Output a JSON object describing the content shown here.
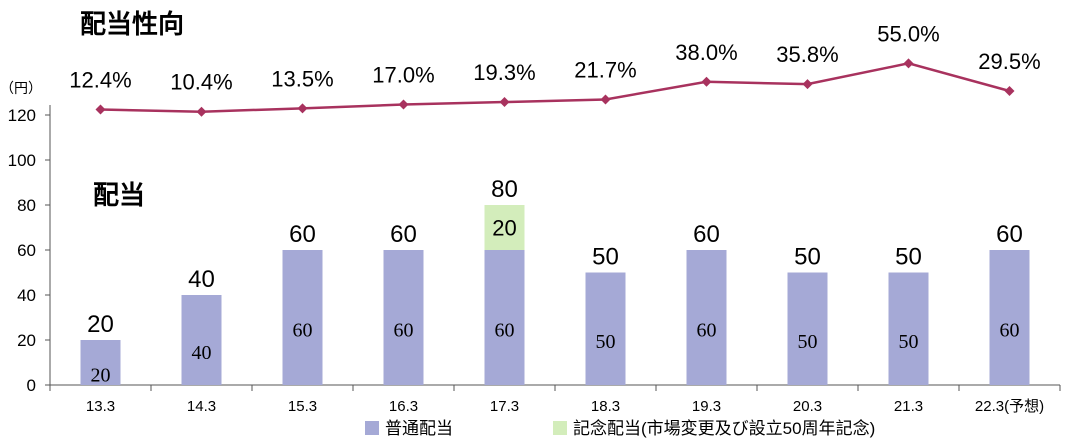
{
  "chart_data": {
    "type": "bar",
    "title_payout": "配当性向",
    "title_dividend": "配当",
    "ylabel": "（円）",
    "ylim": [
      0,
      120
    ],
    "yticks": [
      0,
      20,
      40,
      60,
      80,
      100,
      120
    ],
    "categories": [
      "13.3",
      "14.3",
      "15.3",
      "16.3",
      "17.3",
      "18.3",
      "19.3",
      "20.3",
      "21.3",
      "22.3(予想)"
    ],
    "series": [
      {
        "name": "普通配当",
        "type": "bar",
        "color": "#a5a9d6",
        "values": [
          20,
          40,
          60,
          60,
          60,
          50,
          60,
          50,
          50,
          60
        ]
      },
      {
        "name": "記念配当(市場変更及び設立50周年記念)",
        "type": "bar",
        "color": "#d3edbb",
        "values": [
          0,
          0,
          0,
          0,
          20,
          0,
          0,
          0,
          0,
          0
        ]
      }
    ],
    "totals": [
      20,
      40,
      60,
      60,
      80,
      50,
      60,
      50,
      50,
      60
    ],
    "payout_ratio": {
      "type": "line",
      "color": "#a8325e",
      "values": [
        12.4,
        10.4,
        13.5,
        17.0,
        19.3,
        21.7,
        38.0,
        35.8,
        55.0,
        29.5
      ],
      "labels": [
        "12.4%",
        "10.4%",
        "13.5%",
        "17.0%",
        "19.3%",
        "21.7%",
        "38.0%",
        "35.8%",
        "55.0%",
        "29.5%"
      ]
    },
    "legend_position": "bottom",
    "grid": false
  }
}
